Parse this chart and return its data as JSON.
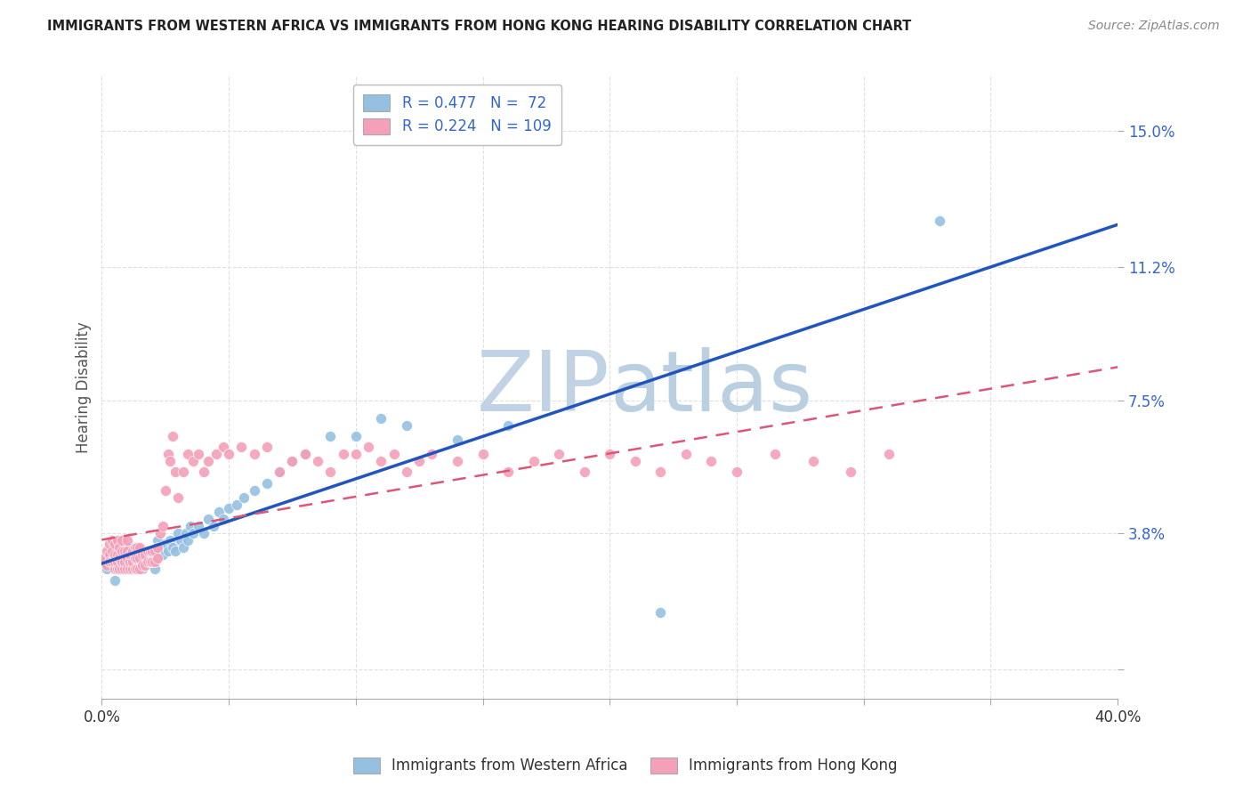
{
  "title": "IMMIGRANTS FROM WESTERN AFRICA VS IMMIGRANTS FROM HONG KONG HEARING DISABILITY CORRELATION CHART",
  "source": "Source: ZipAtlas.com",
  "ylabel": "Hearing Disability",
  "xmin": 0.0,
  "xmax": 0.4,
  "ymin": -0.008,
  "ymax": 0.165,
  "yticks": [
    0.0,
    0.038,
    0.075,
    0.112,
    0.15
  ],
  "ytick_labels": [
    "",
    "3.8%",
    "7.5%",
    "11.2%",
    "15.0%"
  ],
  "xticks": [
    0.0,
    0.05,
    0.1,
    0.15,
    0.2,
    0.25,
    0.3,
    0.35,
    0.4
  ],
  "xtick_labels": [
    "0.0%",
    "",
    "",
    "",
    "",
    "",
    "",
    "",
    "40.0%"
  ],
  "legend_r1": "R = 0.477",
  "legend_n1": "N =  72",
  "legend_r2": "R = 0.224",
  "legend_n2": "N = 109",
  "color_blue": "#95C0E0",
  "color_pink": "#F4A0B8",
  "color_blue_line": "#2255BB",
  "color_pink_line": "#DD5577",
  "watermark_zip_color": "#C5D5E5",
  "watermark_atlas_color": "#B8CCE0",
  "background_color": "#FFFFFF",
  "grid_color": "#DDDDDD",
  "blue_scatter_x": [
    0.001,
    0.002,
    0.003,
    0.003,
    0.004,
    0.005,
    0.005,
    0.006,
    0.006,
    0.007,
    0.007,
    0.008,
    0.008,
    0.009,
    0.009,
    0.01,
    0.01,
    0.011,
    0.011,
    0.012,
    0.012,
    0.013,
    0.013,
    0.014,
    0.015,
    0.015,
    0.016,
    0.016,
    0.017,
    0.018,
    0.018,
    0.019,
    0.02,
    0.021,
    0.022,
    0.022,
    0.023,
    0.024,
    0.025,
    0.026,
    0.027,
    0.028,
    0.029,
    0.03,
    0.031,
    0.032,
    0.033,
    0.034,
    0.035,
    0.036,
    0.038,
    0.04,
    0.042,
    0.044,
    0.046,
    0.048,
    0.05,
    0.053,
    0.056,
    0.06,
    0.065,
    0.07,
    0.075,
    0.08,
    0.09,
    0.1,
    0.11,
    0.12,
    0.14,
    0.16,
    0.22,
    0.33
  ],
  "blue_scatter_y": [
    0.03,
    0.028,
    0.03,
    0.033,
    0.031,
    0.025,
    0.032,
    0.03,
    0.034,
    0.028,
    0.031,
    0.033,
    0.03,
    0.028,
    0.032,
    0.03,
    0.034,
    0.028,
    0.031,
    0.03,
    0.033,
    0.028,
    0.032,
    0.03,
    0.029,
    0.033,
    0.028,
    0.031,
    0.032,
    0.03,
    0.033,
    0.031,
    0.03,
    0.028,
    0.033,
    0.036,
    0.034,
    0.032,
    0.035,
    0.033,
    0.036,
    0.034,
    0.033,
    0.038,
    0.036,
    0.034,
    0.038,
    0.036,
    0.04,
    0.038,
    0.04,
    0.038,
    0.042,
    0.04,
    0.044,
    0.042,
    0.045,
    0.046,
    0.048,
    0.05,
    0.052,
    0.055,
    0.058,
    0.06,
    0.065,
    0.065,
    0.07,
    0.068,
    0.064,
    0.068,
    0.016,
    0.125
  ],
  "pink_scatter_x": [
    0.001,
    0.002,
    0.002,
    0.003,
    0.003,
    0.003,
    0.004,
    0.004,
    0.004,
    0.005,
    0.005,
    0.005,
    0.005,
    0.006,
    0.006,
    0.006,
    0.006,
    0.007,
    0.007,
    0.007,
    0.008,
    0.008,
    0.008,
    0.008,
    0.009,
    0.009,
    0.009,
    0.01,
    0.01,
    0.01,
    0.01,
    0.011,
    0.011,
    0.011,
    0.012,
    0.012,
    0.012,
    0.013,
    0.013,
    0.013,
    0.014,
    0.014,
    0.014,
    0.015,
    0.015,
    0.015,
    0.016,
    0.016,
    0.017,
    0.017,
    0.018,
    0.018,
    0.019,
    0.019,
    0.02,
    0.02,
    0.021,
    0.021,
    0.022,
    0.022,
    0.023,
    0.024,
    0.025,
    0.026,
    0.027,
    0.028,
    0.029,
    0.03,
    0.032,
    0.034,
    0.036,
    0.038,
    0.04,
    0.042,
    0.045,
    0.048,
    0.05,
    0.055,
    0.06,
    0.065,
    0.07,
    0.075,
    0.08,
    0.085,
    0.09,
    0.095,
    0.1,
    0.105,
    0.11,
    0.115,
    0.12,
    0.125,
    0.13,
    0.14,
    0.15,
    0.16,
    0.17,
    0.18,
    0.19,
    0.2,
    0.21,
    0.22,
    0.23,
    0.24,
    0.25,
    0.265,
    0.28,
    0.295,
    0.31
  ],
  "pink_scatter_y": [
    0.031,
    0.033,
    0.029,
    0.032,
    0.03,
    0.035,
    0.03,
    0.033,
    0.036,
    0.028,
    0.03,
    0.032,
    0.035,
    0.028,
    0.03,
    0.032,
    0.036,
    0.028,
    0.031,
    0.034,
    0.028,
    0.03,
    0.033,
    0.036,
    0.028,
    0.03,
    0.033,
    0.028,
    0.031,
    0.033,
    0.036,
    0.028,
    0.03,
    0.032,
    0.028,
    0.03,
    0.033,
    0.028,
    0.031,
    0.034,
    0.028,
    0.031,
    0.034,
    0.028,
    0.031,
    0.034,
    0.029,
    0.032,
    0.029,
    0.032,
    0.03,
    0.033,
    0.03,
    0.033,
    0.03,
    0.033,
    0.03,
    0.033,
    0.031,
    0.034,
    0.038,
    0.04,
    0.05,
    0.06,
    0.058,
    0.065,
    0.055,
    0.048,
    0.055,
    0.06,
    0.058,
    0.06,
    0.055,
    0.058,
    0.06,
    0.062,
    0.06,
    0.062,
    0.06,
    0.062,
    0.055,
    0.058,
    0.06,
    0.058,
    0.055,
    0.06,
    0.06,
    0.062,
    0.058,
    0.06,
    0.055,
    0.058,
    0.06,
    0.058,
    0.06,
    0.055,
    0.058,
    0.06,
    0.055,
    0.06,
    0.058,
    0.055,
    0.06,
    0.058,
    0.055,
    0.06,
    0.058,
    0.055,
    0.06
  ]
}
